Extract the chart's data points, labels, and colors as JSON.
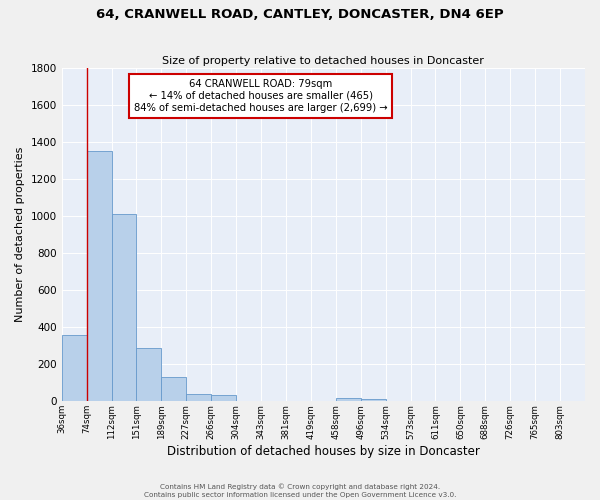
{
  "title": "64, CRANWELL ROAD, CANTLEY, DONCASTER, DN4 6EP",
  "subtitle": "Size of property relative to detached houses in Doncaster",
  "xlabel": "Distribution of detached houses by size in Doncaster",
  "ylabel": "Number of detached properties",
  "bin_labels": [
    "36sqm",
    "74sqm",
    "112sqm",
    "151sqm",
    "189sqm",
    "227sqm",
    "266sqm",
    "304sqm",
    "343sqm",
    "381sqm",
    "419sqm",
    "458sqm",
    "496sqm",
    "534sqm",
    "573sqm",
    "611sqm",
    "650sqm",
    "688sqm",
    "726sqm",
    "765sqm",
    "803sqm"
  ],
  "bar_values": [
    355,
    1350,
    1010,
    290,
    130,
    40,
    35,
    0,
    0,
    0,
    0,
    20,
    15,
    0,
    0,
    0,
    0,
    0,
    0,
    0,
    0
  ],
  "bar_color": "#b8d0ea",
  "bar_edge_color": "#6699cc",
  "vline_color": "#cc0000",
  "annotation_title": "64 CRANWELL ROAD: 79sqm",
  "annotation_line1": "← 14% of detached houses are smaller (465)",
  "annotation_line2": "84% of semi-detached houses are larger (2,699) →",
  "annotation_box_color": "#cc0000",
  "ylim": [
    0,
    1800
  ],
  "yticks": [
    0,
    200,
    400,
    600,
    800,
    1000,
    1200,
    1400,
    1600,
    1800
  ],
  "footer_line1": "Contains HM Land Registry data © Crown copyright and database right 2024.",
  "footer_line2": "Contains public sector information licensed under the Open Government Licence v3.0.",
  "fig_background": "#f0f0f0",
  "plot_background": "#e8eef8"
}
